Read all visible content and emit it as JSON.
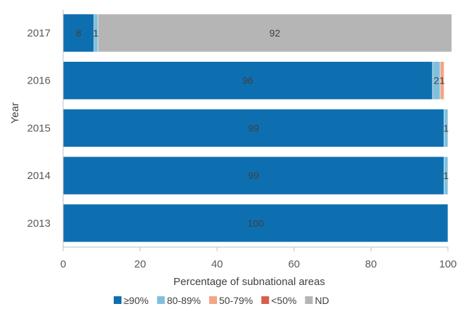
{
  "chart_data": {
    "type": "bar",
    "orientation": "horizontal",
    "stacked": true,
    "xlabel": "Percentage of subnational areas",
    "ylabel": "Year",
    "xlim": [
      0,
      100
    ],
    "xticks": [
      "0",
      "20",
      "40",
      "60",
      "80",
      "100"
    ],
    "grid": false,
    "legend_position": "bottom",
    "categories": [
      "2017",
      "2016",
      "2015",
      "2014",
      "2013"
    ],
    "series": [
      {
        "name": "≥90%",
        "color": "#0e6fb0",
        "values": [
          8,
          96,
          99,
          99,
          100
        ],
        "labels": [
          "8",
          "96",
          "99",
          "99",
          "100"
        ]
      },
      {
        "name": "80-89%",
        "color": "#80c0dc",
        "values": [
          1,
          2,
          1,
          1,
          0
        ],
        "labels": [
          "1",
          "2",
          "1",
          "1",
          ""
        ]
      },
      {
        "name": "50-79%",
        "color": "#f4a582",
        "values": [
          0,
          1,
          0,
          0,
          0
        ],
        "labels": [
          "",
          "1",
          "",
          "",
          ""
        ]
      },
      {
        "name": "<50%",
        "color": "#d6604d",
        "values": [
          0,
          0,
          0,
          0,
          0
        ],
        "labels": [
          "",
          "",
          "",
          "",
          ""
        ]
      },
      {
        "name": "ND",
        "color": "#b5b5b5",
        "values": [
          92,
          0,
          0,
          0,
          0
        ],
        "labels": [
          "92",
          "",
          "",
          "",
          ""
        ]
      }
    ]
  }
}
